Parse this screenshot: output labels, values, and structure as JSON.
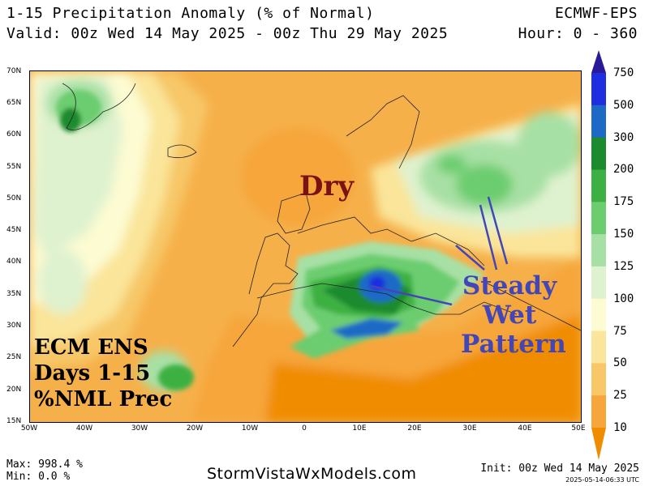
{
  "header": {
    "title": "1-15 Precipitation Anomaly (% of Normal)",
    "valid": "Valid: 00z Wed 14 May 2025 - 00z Thu 29 May 2025",
    "model": "ECMWF-EPS",
    "hour": "Hour: 0 - 360"
  },
  "map": {
    "lat_labels": [
      "70N",
      "65N",
      "60N",
      "55N",
      "50N",
      "45N",
      "40N",
      "35N",
      "30N",
      "25N",
      "20N",
      "15N"
    ],
    "lon_labels": [
      "50W",
      "40W",
      "30W",
      "20W",
      "10W",
      "0",
      "10E",
      "20E",
      "30E",
      "40E",
      "50E"
    ],
    "lon_range": [
      -50,
      50
    ],
    "lat_range": [
      15,
      70
    ],
    "annotations": {
      "dry": "Dry",
      "steady_wet": [
        "Steady",
        "Wet",
        "Pattern"
      ],
      "ens": [
        "ECM ENS",
        "Days 1-15",
        "%NML Prec"
      ]
    },
    "annotation_colors": {
      "dry": "#7b1212",
      "wet": "#4346b8"
    }
  },
  "legend": {
    "levels": [
      "10",
      "25",
      "50",
      "75",
      "100",
      "125",
      "150",
      "175",
      "200",
      "300",
      "500",
      "750"
    ],
    "colors": [
      "#f08c00",
      "#f6a63a",
      "#f7c768",
      "#fae59a",
      "#fdfbd2",
      "#dff2cf",
      "#a7e0a4",
      "#6ccd6f",
      "#3cb043",
      "#1c8a2e",
      "#1d6ac6",
      "#1e2ee0",
      "#2a1a9a"
    ]
  },
  "footer": {
    "max": "Max: 998.4 %",
    "min": "Min: 0.0 %",
    "site": "StormVistaWxModels.com",
    "init": "Init: 00z Wed 14 May 2025",
    "stamp": "2025-05-14-06:33 UTC"
  }
}
